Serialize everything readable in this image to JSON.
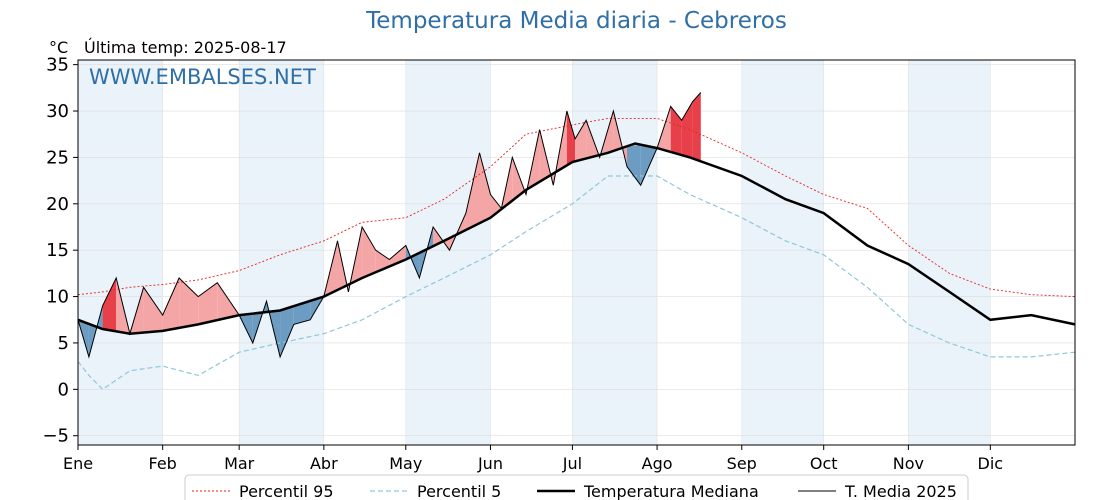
{
  "chart_data": {
    "type": "line",
    "title": "Temperatura Media diaria - Cebreros",
    "unit": "°C",
    "last_update": "Última temp: 2025-08-17",
    "watermark": "WWW.EMBALSES.NET",
    "ylim": [
      -6,
      35.5
    ],
    "yticks": [
      -5,
      0,
      5,
      10,
      15,
      20,
      25,
      30,
      35
    ],
    "xlim": [
      1,
      366
    ],
    "months": [
      {
        "label": "Ene",
        "day": 1
      },
      {
        "label": "Feb",
        "day": 32
      },
      {
        "label": "Mar",
        "day": 60
      },
      {
        "label": "Abr",
        "day": 91
      },
      {
        "label": "May",
        "day": 121
      },
      {
        "label": "Jun",
        "day": 152
      },
      {
        "label": "Jul",
        "day": 182
      },
      {
        "label": "Ago",
        "day": 213
      },
      {
        "label": "Sep",
        "day": 244
      },
      {
        "label": "Oct",
        "day": 274
      },
      {
        "label": "Nov",
        "day": 305
      },
      {
        "label": "Dic",
        "day": 335
      }
    ],
    "grid": true,
    "legend_position": "bottom",
    "colors": {
      "p95": "#e8231c",
      "p5": "#8fc7d9",
      "median": "#000000",
      "current": "#000000",
      "above_fill": "#f4a6a6",
      "above_strong": "#e8404a",
      "below_fill": "#6d9cc2",
      "band": "#eaf2fa",
      "title": "#2f6fa6"
    },
    "series": [
      {
        "name": "Percentil 95",
        "style": "dotted-red",
        "x": [
          1,
          10,
          20,
          32,
          45,
          60,
          75,
          91,
          105,
          121,
          135,
          152,
          165,
          182,
          195,
          213,
          225,
          244,
          260,
          274,
          290,
          305,
          320,
          335,
          350,
          366
        ],
        "values": [
          10.2,
          10.5,
          11,
          11.3,
          11.8,
          12.8,
          14.5,
          16,
          18,
          18.5,
          20.5,
          24,
          27.5,
          28.5,
          29.2,
          29.2,
          28,
          25.5,
          23,
          21,
          19.5,
          15.5,
          12.5,
          10.8,
          10.2,
          10
        ]
      },
      {
        "name": "Percentil 5",
        "style": "dashed-lightblue",
        "x": [
          1,
          5,
          10,
          20,
          32,
          45,
          60,
          75,
          91,
          105,
          121,
          135,
          152,
          165,
          182,
          195,
          213,
          225,
          244,
          260,
          274,
          290,
          305,
          320,
          335,
          350,
          366
        ],
        "values": [
          3,
          1.5,
          0,
          2,
          2.5,
          1.5,
          4,
          5,
          6,
          7.5,
          10,
          12,
          14.5,
          17,
          20,
          23,
          23,
          21,
          18.5,
          16,
          14.5,
          11,
          7,
          5,
          3.5,
          3.5,
          4
        ]
      },
      {
        "name": "Temperatura Mediana",
        "style": "thick-black",
        "x": [
          1,
          10,
          20,
          32,
          45,
          60,
          75,
          91,
          105,
          121,
          135,
          152,
          165,
          182,
          195,
          205,
          213,
          225,
          244,
          260,
          274,
          290,
          305,
          320,
          335,
          350,
          366
        ],
        "values": [
          7.5,
          6.5,
          6,
          6.3,
          7,
          8,
          8.5,
          10,
          12,
          14,
          16,
          18.5,
          21.5,
          24.5,
          25.5,
          26.5,
          26,
          25,
          23,
          20.5,
          19,
          15.5,
          13.5,
          10.5,
          7.5,
          8,
          7
        ]
      },
      {
        "name": "T. Media 2025",
        "style": "thin-black",
        "x": [
          1,
          5,
          10,
          15,
          20,
          25,
          32,
          38,
          45,
          52,
          60,
          65,
          70,
          75,
          80,
          86,
          91,
          96,
          100,
          105,
          110,
          115,
          121,
          126,
          131,
          137,
          143,
          148,
          152,
          156,
          160,
          165,
          170,
          175,
          180,
          183,
          187,
          192,
          197,
          202,
          207,
          213,
          218,
          222,
          226,
          229
        ],
        "values": [
          7.5,
          3.5,
          9,
          12,
          6,
          11,
          8,
          12,
          10,
          11.5,
          8,
          5,
          9.5,
          3.5,
          7,
          7.5,
          10,
          16,
          10.5,
          17.5,
          15,
          14,
          15.5,
          12,
          17.5,
          15,
          19,
          25.5,
          21,
          19.5,
          25,
          21,
          28,
          22,
          30,
          27,
          29,
          25,
          30,
          24,
          22,
          26,
          30.5,
          29,
          31,
          32
        ]
      }
    ],
    "legend": [
      {
        "name": "Percentil 95"
      },
      {
        "name": "Percentil 5"
      },
      {
        "name": "Temperatura Mediana"
      },
      {
        "name": "T. Media 2025"
      }
    ]
  }
}
